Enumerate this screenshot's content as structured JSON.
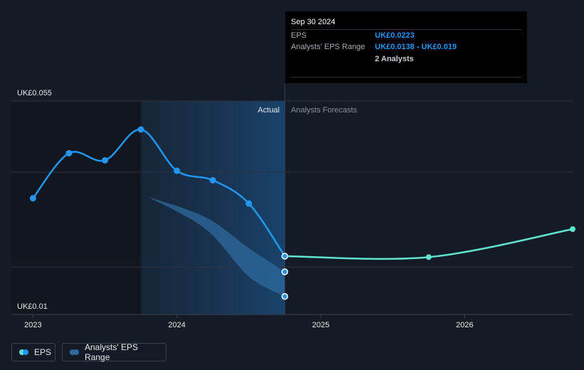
{
  "chart_data": {
    "type": "line",
    "title": "",
    "y_axis": {
      "min_label": "UK£0.01",
      "max_label": "UK£0.055",
      "range": [
        0.01,
        0.055
      ],
      "gridlines": [
        0.055,
        0.04,
        0.02
      ]
    },
    "x_axis": {
      "ticks": [
        {
          "label": "2023",
          "value": 2023.0
        },
        {
          "label": "2024",
          "value": 2024.0
        },
        {
          "label": "2025",
          "value": 2025.0
        },
        {
          "label": "2026",
          "value": 2026.0
        }
      ],
      "range": [
        2022.85,
        2026.75
      ]
    },
    "section_labels": {
      "actual": "Actual",
      "forecast": "Analysts Forecasts"
    },
    "series": [
      {
        "name": "EPS",
        "color": "#2196f3",
        "points": [
          {
            "x": 2023.0,
            "y": 0.0345
          },
          {
            "x": 2023.25,
            "y": 0.044
          },
          {
            "x": 2023.5,
            "y": 0.0425
          },
          {
            "x": 2023.75,
            "y": 0.049
          },
          {
            "x": 2024.0,
            "y": 0.0403
          },
          {
            "x": 2024.25,
            "y": 0.0383
          },
          {
            "x": 2024.5,
            "y": 0.0334
          },
          {
            "x": 2024.75,
            "y": 0.0223
          }
        ]
      },
      {
        "name": "EPS Forecast",
        "color": "#5fe3d0",
        "points": [
          {
            "x": 2024.75,
            "y": 0.0223
          },
          {
            "x": 2025.75,
            "y": 0.0221
          },
          {
            "x": 2026.75,
            "y": 0.028
          }
        ]
      }
    ],
    "range_band": {
      "name": "Analysts' EPS Range",
      "color": "#2e6a9e",
      "upper": [
        {
          "x": 2023.8,
          "y": 0.0348
        },
        {
          "x": 2024.2,
          "y": 0.0305
        },
        {
          "x": 2024.5,
          "y": 0.024
        },
        {
          "x": 2024.75,
          "y": 0.019
        }
      ],
      "lower": [
        {
          "x": 2023.8,
          "y": 0.0348
        },
        {
          "x": 2024.2,
          "y": 0.028
        },
        {
          "x": 2024.5,
          "y": 0.018
        },
        {
          "x": 2024.75,
          "y": 0.0138
        }
      ]
    },
    "highlight_range": [
      2023.75,
      2024.75
    ],
    "legend": [
      {
        "label": "EPS",
        "colors": [
          "#5fe3d0",
          "#2196f3"
        ]
      },
      {
        "label": "Analysts' EPS Range",
        "colors": [
          "#2e6a9e",
          "#2e6a9e"
        ]
      }
    ],
    "tooltip": {
      "date": "Sep 30 2024",
      "eps_label": "EPS",
      "eps_value": "UK£0.0223",
      "range_label": "Analysts' EPS Range",
      "range_value": "UK£0.0138 - UK£0.019",
      "analysts": "2 Analysts"
    }
  }
}
